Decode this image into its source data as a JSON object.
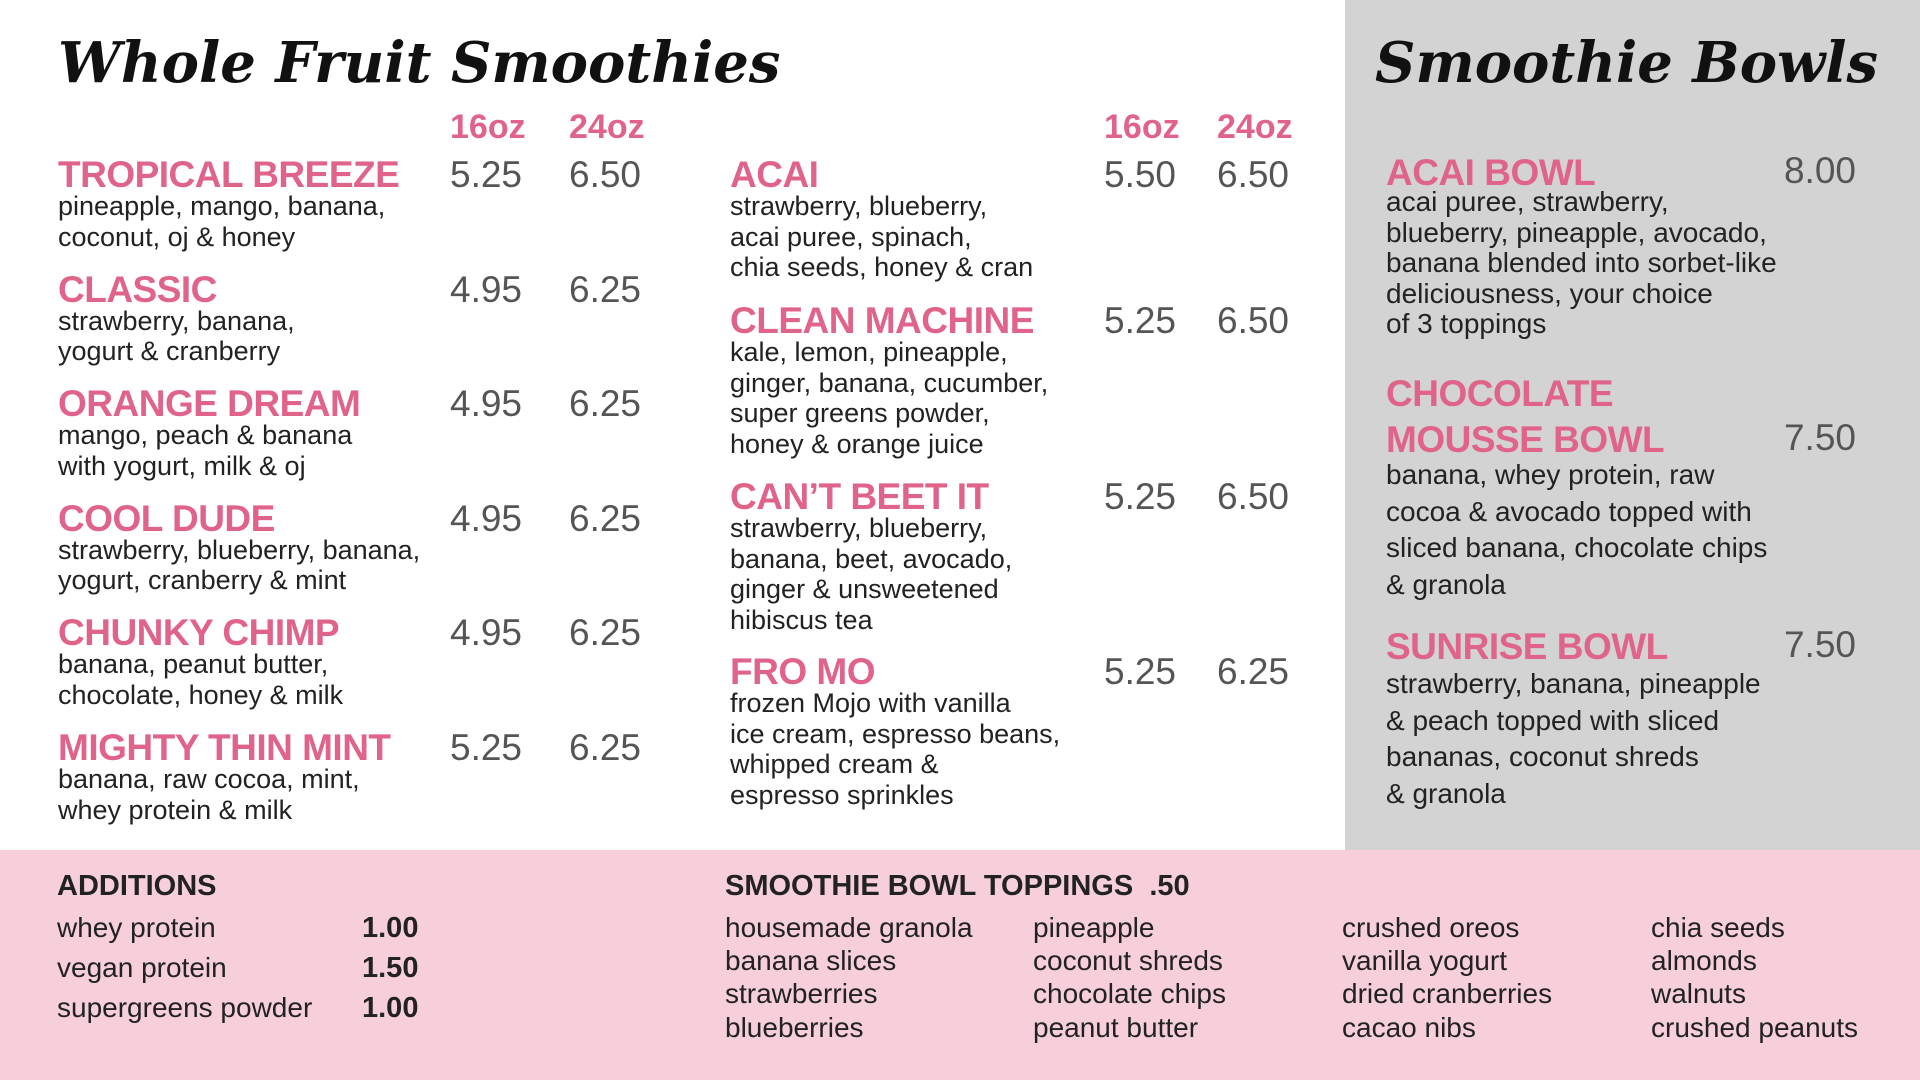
{
  "colors": {
    "accent": "#e0648a",
    "bowls_panel": "#d3d3d3",
    "bottom_panel": "#f6cfdb",
    "price": "#555555"
  },
  "smoothies": {
    "title": "Whole Fruit Smoothies",
    "size_small": "16oz",
    "size_large": "24oz",
    "left_items": [
      {
        "name": "TROPICAL BREEZE",
        "p16": "5.25",
        "p24": "6.50",
        "desc": "pineapple, mango, banana,\ncoconut, oj & honey"
      },
      {
        "name": "CLASSIC",
        "p16": "4.95",
        "p24": "6.25",
        "desc": "strawberry, banana,\nyogurt & cranberry"
      },
      {
        "name": "ORANGE DREAM",
        "p16": "4.95",
        "p24": "6.25",
        "desc": "mango, peach & banana\nwith yogurt, milk & oj"
      },
      {
        "name": "COOL DUDE",
        "p16": "4.95",
        "p24": "6.25",
        "desc": "strawberry, blueberry, banana,\nyogurt, cranberry & mint"
      },
      {
        "name": "CHUNKY CHIMP",
        "p16": "4.95",
        "p24": "6.25",
        "desc": "banana, peanut butter,\nchocolate, honey & milk"
      },
      {
        "name": "MIGHTY THIN MINT",
        "p16": "5.25",
        "p24": "6.25",
        "desc": "banana, raw cocoa, mint,\nwhey protein & milk"
      }
    ],
    "right_items": [
      {
        "name": "ACAI",
        "p16": "5.50",
        "p24": "6.50",
        "desc": "strawberry, blueberry,\nacai puree, spinach,\nchia seeds, honey & cran"
      },
      {
        "name": "CLEAN MACHINE",
        "p16": "5.25",
        "p24": "6.50",
        "desc": "kale, lemon, pineapple,\nginger, banana, cucumber,\nsuper greens powder,\nhoney & orange juice"
      },
      {
        "name": "CAN’T BEET IT",
        "p16": "5.25",
        "p24": "6.50",
        "desc": "strawberry, blueberry,\nbanana, beet, avocado,\nginger & unsweetened\nhibiscus tea"
      },
      {
        "name": "FRO MO",
        "p16": "5.25",
        "p24": "6.25",
        "desc": "frozen Mojo with vanilla\nice cream, espresso beans,\nwhipped cream &\nespresso sprinkles"
      }
    ]
  },
  "bowls": {
    "title": "Smoothie Bowls",
    "items": [
      {
        "name": "ACAI BOWL",
        "price": "8.00",
        "desc": "acai puree, strawberry,\nblueberry, pineapple, avocado,\nbanana blended into sorbet-like\ndeliciousness, your choice\nof 3 toppings"
      },
      {
        "name": "CHOCOLATE\nMOUSSE BOWL",
        "price": "7.50",
        "desc": "banana, whey protein, raw\ncocoa & avocado topped with\nsliced banana, chocolate chips\n& granola"
      },
      {
        "name": "SUNRISE BOWL",
        "price": "7.50",
        "desc": "strawberry, banana, pineapple\n& peach topped with sliced\nbananas, coconut shreds\n& granola"
      }
    ]
  },
  "additions": {
    "title": "ADDITIONS",
    "items": [
      {
        "name": "whey protein",
        "price": "1.00"
      },
      {
        "name": "vegan protein",
        "price": "1.50"
      },
      {
        "name": "supergreens powder",
        "price": "1.00"
      }
    ]
  },
  "toppings": {
    "title": "SMOOTHIE BOWL TOPPINGS",
    "price": ".50",
    "columns": [
      [
        "housemade granola",
        "banana slices",
        "strawberries",
        "blueberries"
      ],
      [
        "pineapple",
        "coconut shreds",
        "chocolate chips",
        "peanut butter"
      ],
      [
        "crushed oreos",
        "vanilla yogurt",
        "dried cranberries",
        "cacao nibs"
      ],
      [
        "chia seeds",
        "almonds",
        "walnuts",
        "crushed peanuts"
      ]
    ]
  }
}
